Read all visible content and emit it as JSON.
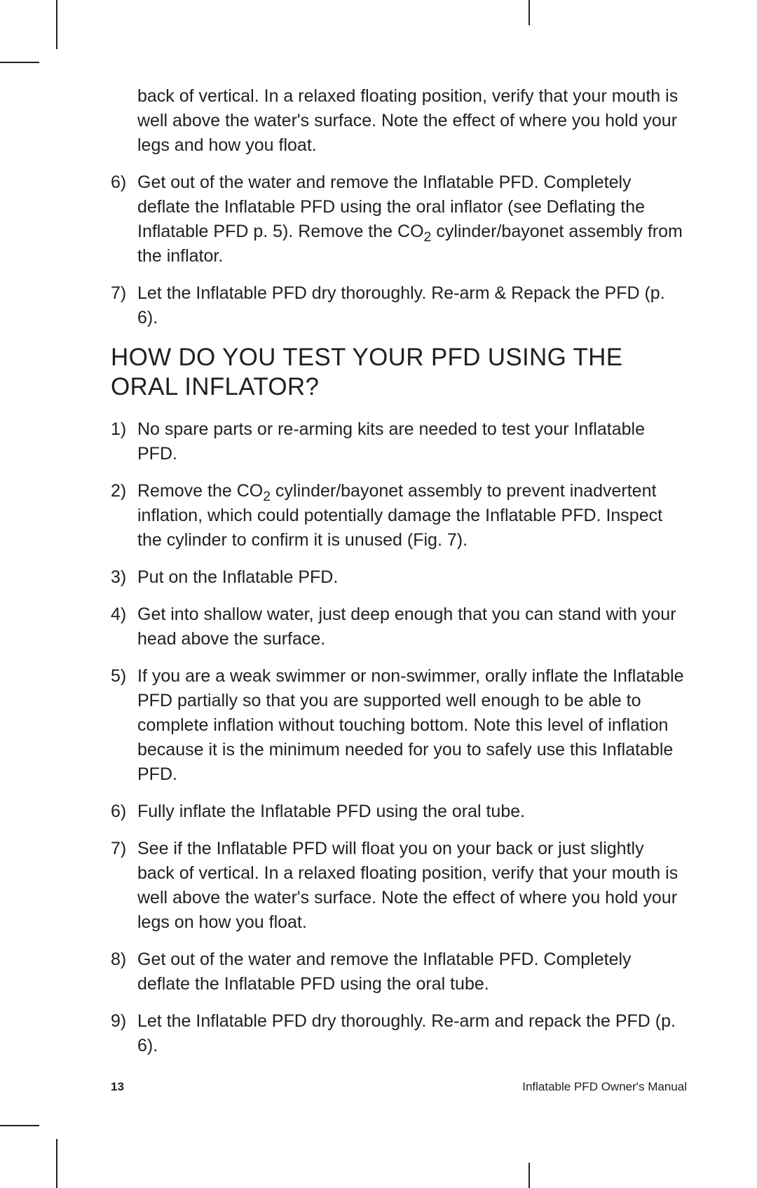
{
  "intro_continued": {
    "text": "back of vertical. In a relaxed floating position, verify that your mouth is well above the water's surface. Note the effect of where you hold your legs and how you float."
  },
  "top_list": [
    {
      "num": "6)",
      "text_pre": "Get out of the water and remove the Inflatable PFD. Completely deflate the Inflatable PFD using the oral inflator (see Deflating the Inflatable PFD p. 5). Remove the CO",
      "sub": "2",
      "text_post": " cylinder/bayonet assembly from the inflator."
    },
    {
      "num": "7)",
      "text_pre": "Let the Inflatable PFD dry thoroughly. Re-arm & Repack the PFD (p. 6).",
      "sub": "",
      "text_post": ""
    }
  ],
  "heading": "HOW DO YOU TEST YOUR PFD USING THE ORAL INFLATOR?",
  "main_list": [
    {
      "num": "1)",
      "text_pre": "No spare parts or re-arming kits are needed to test your Inflatable PFD.",
      "sub": "",
      "text_post": ""
    },
    {
      "num": "2)",
      "text_pre": "Remove the CO",
      "sub": "2",
      "text_post": " cylinder/bayonet assembly to prevent inadvertent inflation, which could potentially damage the Inflatable PFD. Inspect the cylinder to confirm it is unused (Fig. 7)."
    },
    {
      "num": "3)",
      "text_pre": "Put on the Inflatable PFD.",
      "sub": "",
      "text_post": ""
    },
    {
      "num": "4)",
      "text_pre": "Get into shallow water, just deep enough that you can stand with your head above the surface.",
      "sub": "",
      "text_post": ""
    },
    {
      "num": "5)",
      "text_pre": "If you are a weak swimmer or non-swimmer, orally inflate the Inflatable PFD partially so that you are supported well enough to be able to complete inflation without touching bottom. Note this level of inflation because it is the minimum needed for you to safely use this Inflatable PFD.",
      "sub": "",
      "text_post": ""
    },
    {
      "num": "6)",
      "text_pre": "Fully inflate the Inflatable PFD using the oral tube.",
      "sub": "",
      "text_post": ""
    },
    {
      "num": "7)",
      "text_pre": "See if the Inflatable PFD will float you on your back or just slightly back of vertical. In a relaxed floating position, verify that your mouth is well above the water's surface. Note the effect of where you hold your legs on how you float.",
      "sub": "",
      "text_post": ""
    },
    {
      "num": "8)",
      "text_pre": "Get out of the water and remove the Inflatable PFD. Completely deflate the Inflatable PFD using the oral tube.",
      "sub": "",
      "text_post": ""
    },
    {
      "num": "9)",
      "text_pre": "Let the Inflatable PFD dry thoroughly. Re-arm and repack the PFD (p. 6).",
      "sub": "",
      "text_post": ""
    }
  ],
  "footer": {
    "page_number": "13",
    "title": "Inflatable PFD Owner's Manual"
  }
}
